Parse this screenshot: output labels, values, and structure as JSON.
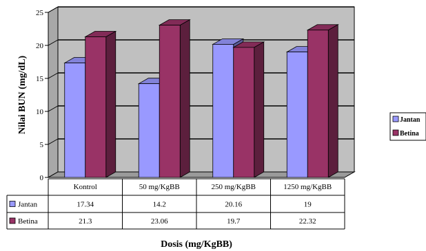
{
  "chart_data": {
    "type": "bar",
    "categories": [
      "Kontrol",
      "50 mg/KgBB",
      "250 mg/KgBB",
      "1250 mg/KgBB"
    ],
    "series": [
      {
        "name": "Jantan",
        "values": [
          17.34,
          14.2,
          20.16,
          19
        ],
        "value_labels": [
          "17.34",
          "14.2",
          "20.16",
          "19"
        ]
      },
      {
        "name": "Betina",
        "values": [
          21.3,
          23.06,
          19.7,
          22.32
        ],
        "value_labels": [
          "21.3",
          "23.06",
          "19.7",
          "22.32"
        ]
      }
    ],
    "xlabel": "Dosis (mg/KgBB)",
    "ylabel": "Nilai BUN (mg/dL)",
    "ylim": [
      0,
      25
    ],
    "yticks": [
      "0",
      "5",
      "10",
      "15",
      "20",
      "25"
    ],
    "grid": true,
    "legend": "right",
    "data_table": true,
    "colors": {
      "Jantan": "#9999ff",
      "Betina": "#993366",
      "plot_background": "#c0c0c0"
    }
  }
}
